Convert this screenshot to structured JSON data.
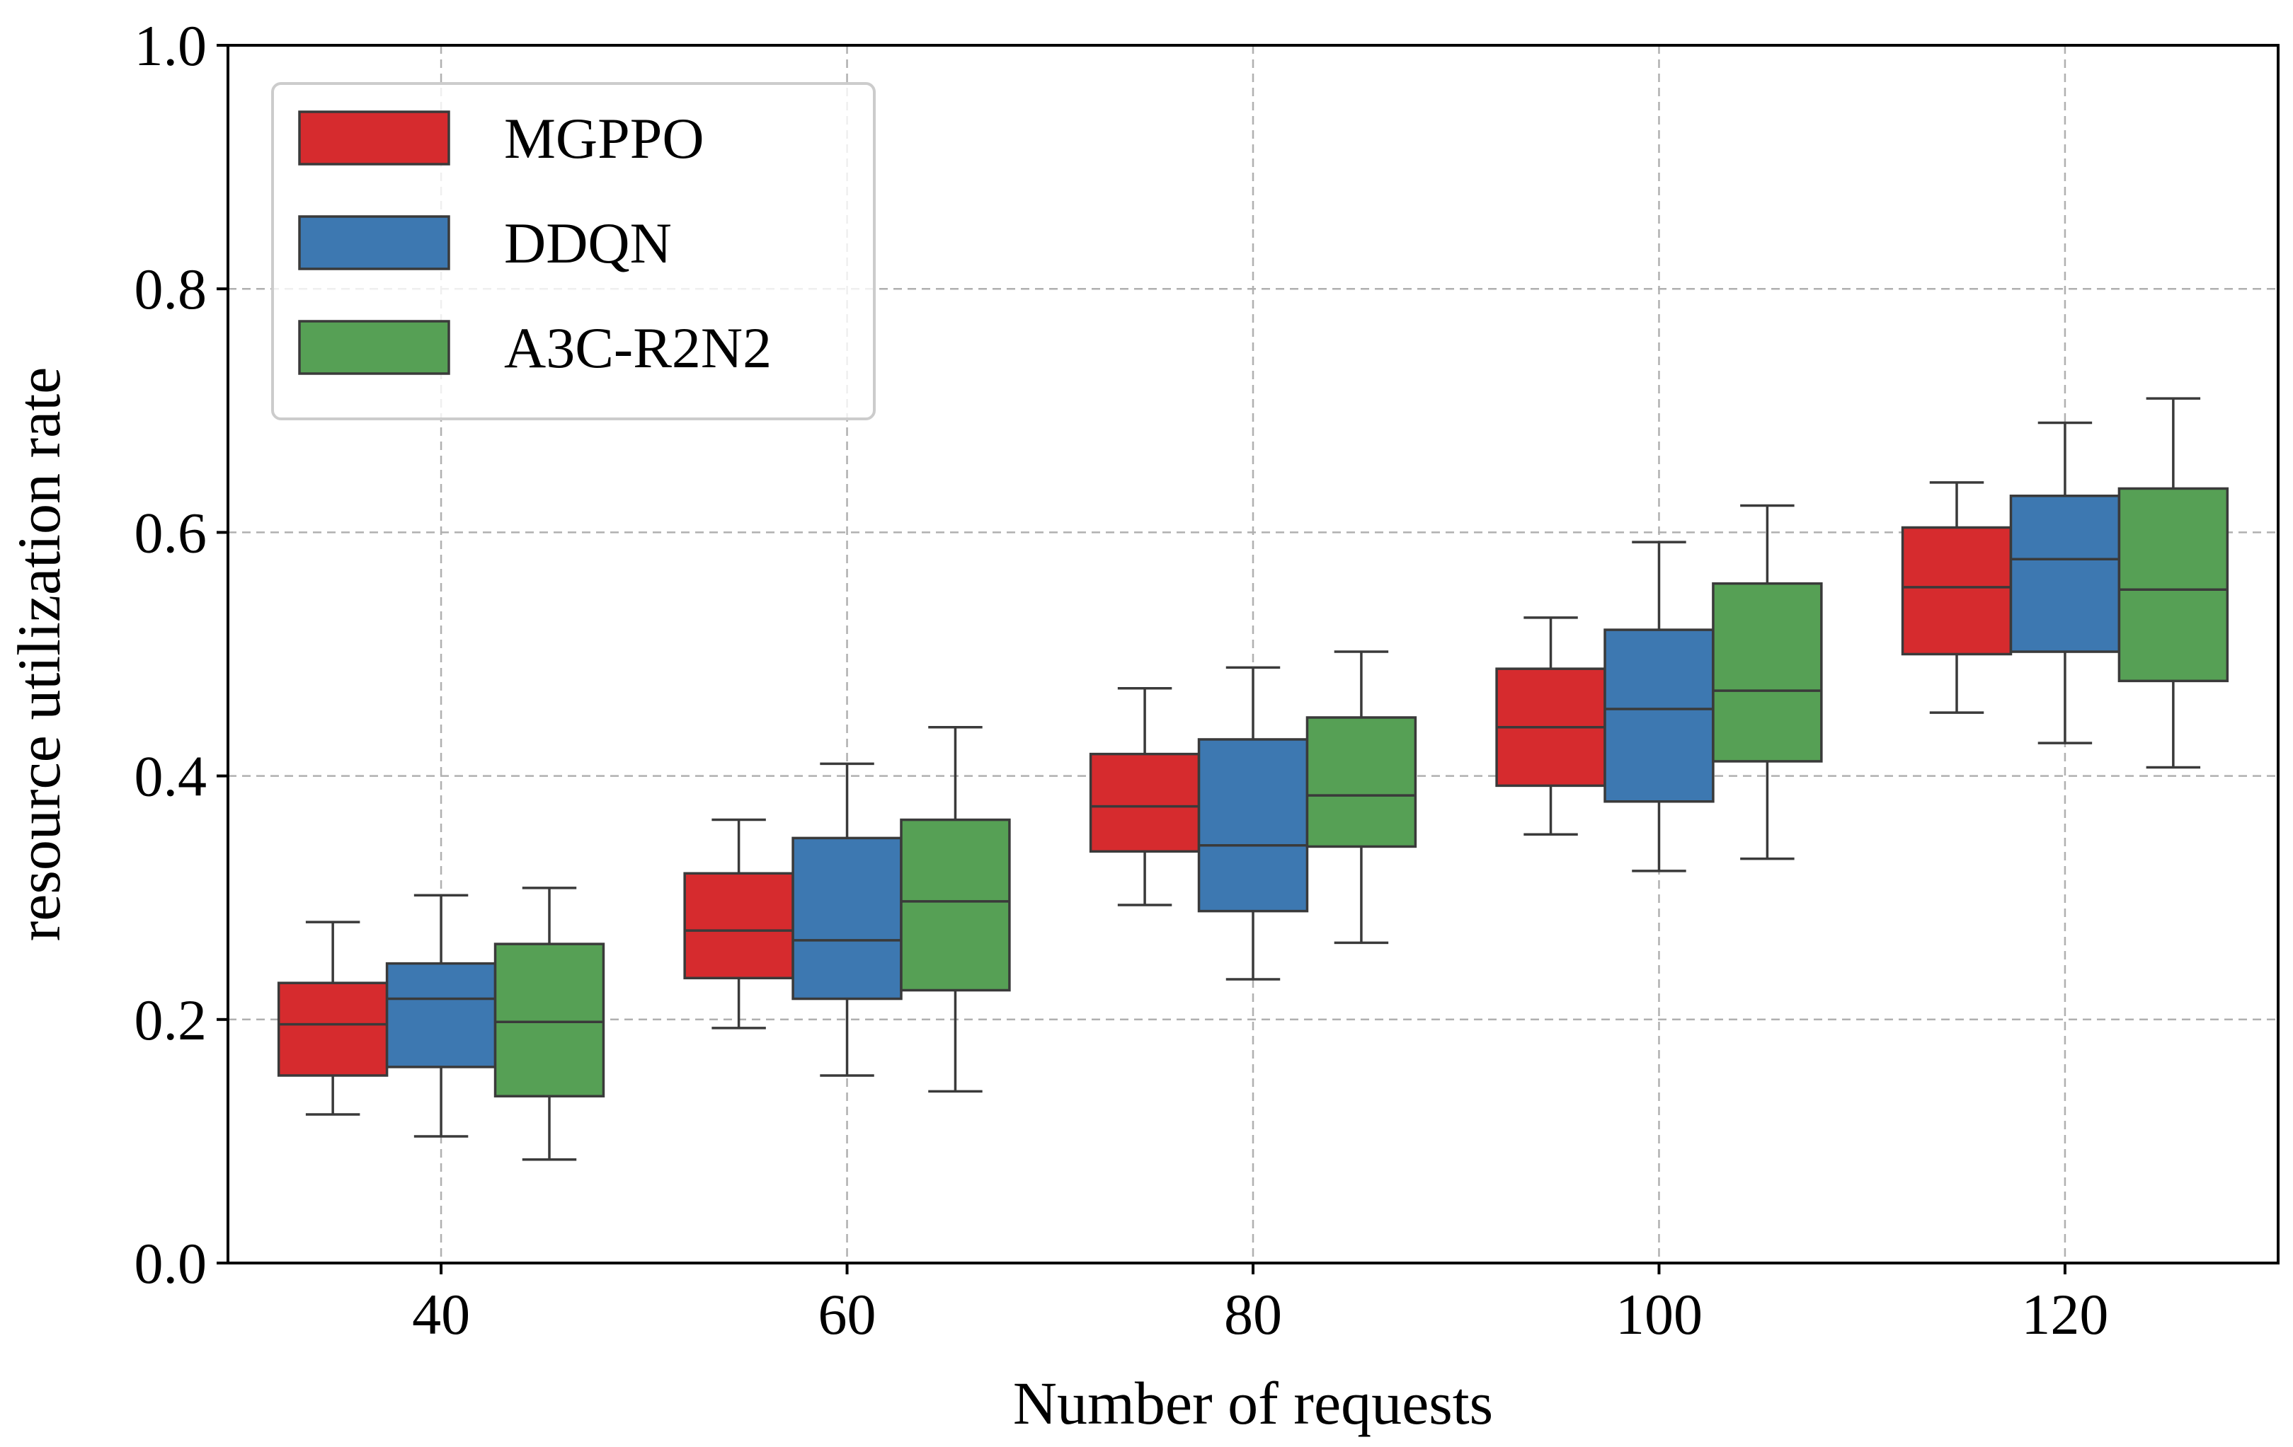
{
  "chart_data": {
    "type": "boxplot",
    "title": "",
    "xlabel": "Number of requests",
    "ylabel": "resource utilization rate",
    "categories": [
      "40",
      "60",
      "80",
      "100",
      "120"
    ],
    "ylim": [
      0.0,
      1.0
    ],
    "yticks": [
      "0.0",
      "0.2",
      "0.4",
      "0.6",
      "0.8",
      "1.0"
    ],
    "grid": true,
    "legend_position": "top-left",
    "series": [
      {
        "name": "MGPPO",
        "color": "#d62b2e",
        "boxes": [
          {
            "whisker_low": 0.122,
            "q1": 0.154,
            "median": 0.196,
            "q3": 0.23,
            "whisker_high": 0.28
          },
          {
            "whisker_low": 0.193,
            "q1": 0.234,
            "median": 0.273,
            "q3": 0.32,
            "whisker_high": 0.364
          },
          {
            "whisker_low": 0.294,
            "q1": 0.338,
            "median": 0.375,
            "q3": 0.418,
            "whisker_high": 0.472
          },
          {
            "whisker_low": 0.352,
            "q1": 0.392,
            "median": 0.44,
            "q3": 0.488,
            "whisker_high": 0.53
          },
          {
            "whisker_low": 0.452,
            "q1": 0.5,
            "median": 0.555,
            "q3": 0.604,
            "whisker_high": 0.641
          }
        ]
      },
      {
        "name": "DDQN",
        "color": "#3d78b1",
        "boxes": [
          {
            "whisker_low": 0.104,
            "q1": 0.161,
            "median": 0.217,
            "q3": 0.246,
            "whisker_high": 0.302
          },
          {
            "whisker_low": 0.154,
            "q1": 0.217,
            "median": 0.265,
            "q3": 0.349,
            "whisker_high": 0.41
          },
          {
            "whisker_low": 0.233,
            "q1": 0.289,
            "median": 0.343,
            "q3": 0.43,
            "whisker_high": 0.489
          },
          {
            "whisker_low": 0.322,
            "q1": 0.379,
            "median": 0.455,
            "q3": 0.52,
            "whisker_high": 0.592
          },
          {
            "whisker_low": 0.427,
            "q1": 0.502,
            "median": 0.578,
            "q3": 0.63,
            "whisker_high": 0.69
          }
        ]
      },
      {
        "name": "A3C-R2N2",
        "color": "#56a055",
        "boxes": [
          {
            "whisker_low": 0.085,
            "q1": 0.137,
            "median": 0.198,
            "q3": 0.262,
            "whisker_high": 0.308
          },
          {
            "whisker_low": 0.141,
            "q1": 0.224,
            "median": 0.297,
            "q3": 0.364,
            "whisker_high": 0.44
          },
          {
            "whisker_low": 0.263,
            "q1": 0.342,
            "median": 0.384,
            "q3": 0.448,
            "whisker_high": 0.502
          },
          {
            "whisker_low": 0.332,
            "q1": 0.412,
            "median": 0.47,
            "q3": 0.558,
            "whisker_high": 0.622
          },
          {
            "whisker_low": 0.407,
            "q1": 0.478,
            "median": 0.553,
            "q3": 0.636,
            "whisker_high": 0.71
          }
        ]
      }
    ]
  }
}
